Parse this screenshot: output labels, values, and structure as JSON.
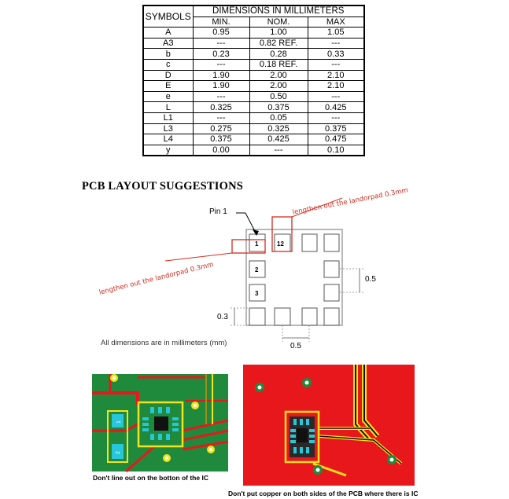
{
  "table": {
    "symbols_header": "SYMBOLS",
    "group_header": "DIMENSIONS IN MILLIMETERS",
    "columns": [
      "MIN.",
      "NOM.",
      "MAX"
    ],
    "rows": [
      {
        "sym": "A",
        "min": "0.95",
        "nom": "1.00",
        "max": "1.05"
      },
      {
        "sym": "A3",
        "min": "---",
        "nom": "0.82 REF.",
        "max": "---"
      },
      {
        "sym": "b",
        "min": "0.23",
        "nom": "0.28",
        "max": "0.33"
      },
      {
        "sym": "c",
        "min": "---",
        "nom": "0.18 REF.",
        "max": "---"
      },
      {
        "sym": "D",
        "min": "1.90",
        "nom": "2.00",
        "max": "2.10"
      },
      {
        "sym": "E",
        "min": "1.90",
        "nom": "2.00",
        "max": "2.10"
      },
      {
        "sym": "e",
        "min": "---",
        "nom": "0.50",
        "max": "---"
      },
      {
        "sym": "L",
        "min": "0.325",
        "nom": "0.375",
        "max": "0.425"
      },
      {
        "sym": "L1",
        "min": "---",
        "nom": "0.05",
        "max": "---"
      },
      {
        "sym": "L3",
        "min": "0.275",
        "nom": "0.325",
        "max": "0.375"
      },
      {
        "sym": "L4",
        "min": "0.375",
        "nom": "0.425",
        "max": "0.475"
      },
      {
        "sym": "y",
        "min": "0.00",
        "nom": "---",
        "max": "0.10"
      }
    ]
  },
  "layout": {
    "title": "PCB LAYOUT SUGGESTIONS",
    "pin1_label": "Pin 1",
    "annotation_top": "lengthen out the landorpad 0.3mm",
    "annotation_left": "lengthen out the landorpad 0.3mm",
    "pad_labels": [
      "1",
      "12",
      "2",
      "3"
    ],
    "dim_pitch_right": "0.5",
    "dim_pad_left": "0.3",
    "dim_pitch_bottom": "0.5",
    "units_note": "All dimensions are in millimeters (mm)"
  },
  "photos": {
    "left_caption": "Don't line out on the botton of the IC",
    "right_caption": "Don't put copper on both sides of the PCB where there is IC",
    "left_resistor_labels": [
      "1",
      "2"
    ]
  },
  "colors": {
    "annotation_red": "#d42b1e",
    "pcb_red": "#e8171c",
    "pcb_green": "#1f8a3b",
    "pad_yellow": "#f5e31a",
    "pad_cyan": "#27c6d8"
  }
}
